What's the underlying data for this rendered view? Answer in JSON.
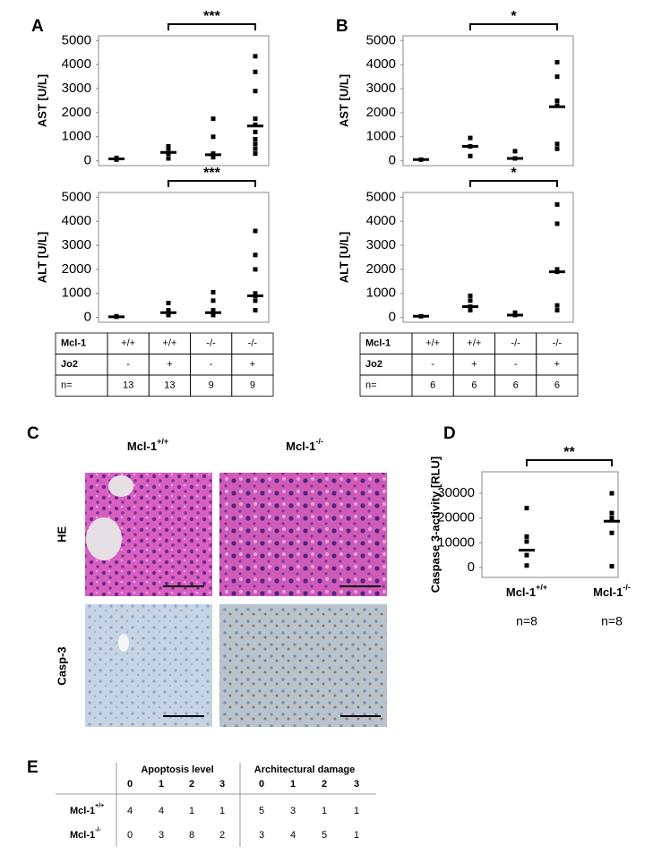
{
  "panel_labels": [
    "A",
    "B",
    "C",
    "D",
    "E"
  ],
  "chart_data": [
    {
      "type": "strip",
      "ylabel": "AST [U/L]",
      "ylim": [
        -200,
        5200
      ],
      "yticks": [
        0,
        1000,
        2000,
        3000,
        4000,
        5000
      ],
      "groups": [
        {
          "values": [
            50,
            100,
            120
          ],
          "median": 80
        },
        {
          "values": [
            100,
            300,
            500,
            600
          ],
          "median": 350
        },
        {
          "values": [
            1750,
            1000,
            300,
            150
          ],
          "median": 250
        },
        {
          "values": [
            4350,
            3700,
            2900,
            1750,
            1500,
            1200,
            900,
            700,
            500,
            300
          ],
          "median": 1450
        }
      ],
      "bracket": {
        "label": "***",
        "groups": [
          1,
          3
        ]
      }
    },
    {
      "type": "strip",
      "ylabel": "ALT [U/L]",
      "ylim": [
        -200,
        5200
      ],
      "yticks": [
        0,
        1000,
        2000,
        3000,
        4000,
        5000
      ],
      "groups": [
        {
          "values": [
            50,
            30
          ],
          "median": 30
        },
        {
          "values": [
            600,
            300,
            150,
            100
          ],
          "median": 200
        },
        {
          "values": [
            1050,
            700,
            300,
            100
          ],
          "median": 200
        },
        {
          "values": [
            3600,
            2600,
            2000,
            1000,
            900,
            700,
            300
          ],
          "median": 900
        }
      ],
      "bracket": {
        "label": "***",
        "groups": [
          1,
          3
        ]
      }
    },
    {
      "type": "strip",
      "ylabel": "AST [U/L]",
      "ylim": [
        -200,
        5200
      ],
      "yticks": [
        0,
        1000,
        2000,
        3000,
        4000,
        5000
      ],
      "groups": [
        {
          "values": [
            50
          ],
          "median": 50
        },
        {
          "values": [
            950,
            600,
            200
          ],
          "median": 600
        },
        {
          "values": [
            400,
            100
          ],
          "median": 100
        },
        {
          "values": [
            4100,
            3500,
            2500,
            2300,
            700,
            500
          ],
          "median": 2250
        }
      ],
      "bracket": {
        "label": "*",
        "groups": [
          1,
          3
        ]
      }
    },
    {
      "type": "strip",
      "ylabel": "ALT [U/L]",
      "ylim": [
        -200,
        5200
      ],
      "yticks": [
        0,
        1000,
        2000,
        3000,
        4000,
        5000
      ],
      "groups": [
        {
          "values": [
            50
          ],
          "median": 50
        },
        {
          "values": [
            900,
            700,
            450,
            300
          ],
          "median": 450
        },
        {
          "values": [
            200,
            100
          ],
          "median": 100
        },
        {
          "values": [
            4700,
            3900,
            2000,
            1900,
            500,
            300
          ],
          "median": 1900
        }
      ],
      "bracket": {
        "label": "*",
        "groups": [
          1,
          3
        ]
      }
    },
    {
      "type": "strip",
      "ylabel": "Caspase 3-activity [RLU]",
      "ylim": [
        -4000,
        38700
      ],
      "yticks": [
        0,
        10000,
        20000,
        30000
      ],
      "groups": [
        {
          "values": [
            24000,
            12500,
            10500,
            5000,
            800
          ],
          "median": 7000
        },
        {
          "values": [
            30000,
            22000,
            20000,
            14000,
            500
          ],
          "median": 18700
        }
      ],
      "group_labels": [
        {
          "base": "Mcl-1",
          "sup": "+/+"
        },
        {
          "base": "Mcl-1",
          "sup": "-/-"
        }
      ],
      "group_n": [
        "n=8",
        "n=8"
      ],
      "bracket": {
        "label": "**",
        "groups": [
          0,
          1
        ]
      }
    }
  ],
  "group_tables": [
    {
      "rows": [
        [
          "Mcl-1",
          "+/+",
          "+/+",
          "-/-",
          "-/-"
        ],
        [
          "Jo2",
          "-",
          "+",
          "-",
          "+"
        ],
        [
          "n=",
          "13",
          "13",
          "9",
          "9"
        ]
      ]
    },
    {
      "rows": [
        [
          "Mcl-1",
          "+/+",
          "+/+",
          "-/-",
          "-/-"
        ],
        [
          "Jo2",
          "-",
          "+",
          "-",
          "+"
        ],
        [
          "n=",
          "6",
          "6",
          "6",
          "6"
        ]
      ]
    }
  ],
  "histology": {
    "columns": [
      {
        "base": "Mcl-1",
        "sup": "+/+"
      },
      {
        "base": "Mcl-1",
        "sup": "-/-"
      }
    ],
    "rows": [
      "HE",
      "Casp-3"
    ]
  },
  "score_table": {
    "headers": [
      "Apoptosis level",
      "Architectural damage"
    ],
    "scores": [
      "0",
      "1",
      "2",
      "3",
      "0",
      "1",
      "2",
      "3"
    ],
    "rows": [
      {
        "label": {
          "base": "Mcl-1",
          "sup": "+/+"
        },
        "values": [
          "4",
          "4",
          "1",
          "1",
          "5",
          "3",
          "1",
          "1"
        ]
      },
      {
        "label": {
          "base": "Mcl-1",
          "sup": "-/-"
        },
        "values": [
          "0",
          "3",
          "8",
          "2",
          "3",
          "4",
          "5",
          "1"
        ]
      }
    ]
  }
}
